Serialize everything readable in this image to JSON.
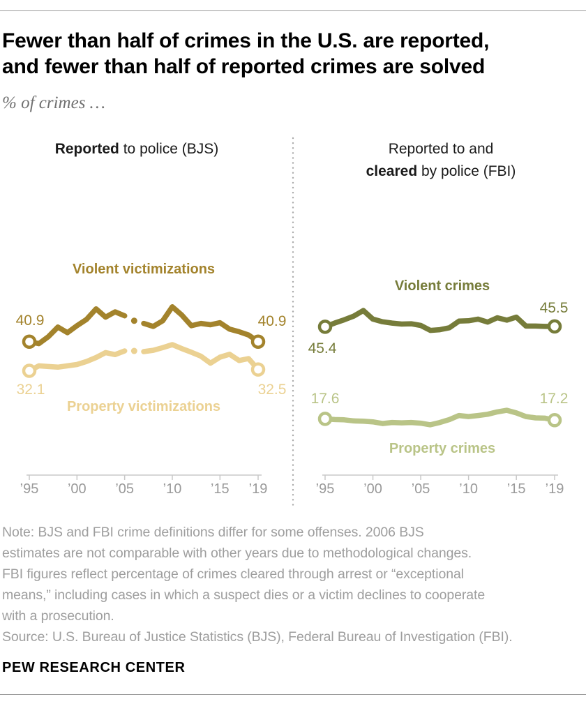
{
  "title": {
    "line1": "Fewer than half of crimes in the U.S. are reported,",
    "line2": "and fewer than half of reported crimes are solved"
  },
  "subtitle": "% of crimes …",
  "chart_data": {
    "type": "line",
    "x": [
      1995,
      1996,
      1997,
      1998,
      1999,
      2000,
      2001,
      2002,
      2003,
      2004,
      2005,
      2006,
      2007,
      2008,
      2009,
      2010,
      2011,
      2012,
      2013,
      2014,
      2015,
      2016,
      2017,
      2018,
      2019
    ],
    "x_tick_labels": [
      "’95",
      "’00",
      "’05",
      "’10",
      "’15",
      "’19"
    ],
    "x_tick_years": [
      1995,
      2000,
      2005,
      2010,
      2015,
      2019
    ],
    "axis": {
      "line_color": "#c8c8c8",
      "tick_label_color": "#9a9a9a"
    },
    "divider_color": "#ababab",
    "panels": [
      {
        "id": "bjs",
        "header_lines": [
          [
            {
              "text": "Reported",
              "bold": true
            },
            {
              "text": " to police (BJS)",
              "bold": false
            }
          ]
        ],
        "series": [
          {
            "name": "Violent victimizations",
            "color": "#a3832c",
            "gap_year": 2006,
            "first_label": "40.9",
            "last_label": "40.9",
            "values": [
              40.9,
              40.3,
              42.4,
              45.3,
              43.6,
              45.7,
              47.6,
              50.8,
              48.3,
              49.9,
              48.7,
              47.2,
              46.4,
              45.5,
              47.2,
              51.4,
              48.9,
              45.7,
              46.4,
              46.0,
              46.6,
              44.7,
              43.9,
              42.9,
              40.9
            ]
          },
          {
            "name": "Property victimizations",
            "color": "#ebd192",
            "gap_year": 2006,
            "first_label": "32.1",
            "last_label": "32.5",
            "values": [
              32.1,
              33.6,
              33.4,
              33.2,
              33.6,
              34.0,
              34.9,
              36.1,
              37.6,
              37.0,
              38.1,
              38.1,
              37.9,
              38.3,
              39.1,
              40.0,
              38.8,
              37.7,
              36.5,
              34.4,
              36.2,
              37.1,
              35.2,
              35.8,
              32.5
            ]
          }
        ]
      },
      {
        "id": "fbi",
        "header_lines": [
          [
            {
              "text": "Reported to and",
              "bold": false
            }
          ],
          [
            {
              "text": "cleared",
              "bold": true
            },
            {
              "text": " by police (FBI)",
              "bold": false
            }
          ]
        ],
        "series": [
          {
            "name": "Violent crimes",
            "color": "#767c3a",
            "first_label": "45.4",
            "last_label": "45.5",
            "values": [
              45.4,
              46.5,
              47.5,
              48.6,
              50.3,
              47.7,
              46.9,
              46.5,
              46.2,
              46.3,
              45.8,
              44.3,
              44.5,
              45.1,
              47.1,
              47.2,
              47.7,
              46.8,
              48.1,
              47.4,
              48.3,
              45.6,
              45.6,
              45.5,
              45.5
            ]
          },
          {
            "name": "Property crimes",
            "color": "#b9c487",
            "first_label": "17.6",
            "last_label": "17.2",
            "values": [
              17.6,
              17.4,
              17.3,
              17.0,
              16.9,
              16.7,
              16.2,
              16.5,
              16.4,
              16.5,
              16.3,
              15.8,
              16.5,
              17.4,
              18.6,
              18.3,
              18.6,
              19.0,
              19.7,
              20.2,
              19.4,
              18.3,
              17.9,
              17.8,
              17.2
            ]
          }
        ]
      }
    ]
  },
  "note": {
    "lines": [
      "Note: BJS and FBI crime definitions differ for some offenses. 2006 BJS",
      "estimates are not comparable with other years due to methodological changes.",
      "FBI figures reflect percentage of crimes cleared through arrest or “exceptional",
      "means,” including cases in which a suspect dies or a victim declines to cooperate",
      "with a prosecution."
    ],
    "source": "Source: U.S. Bureau of Justice Statistics (BJS), Federal Bureau of Investigation (FBI)."
  },
  "footer": {
    "brand": "PEW RESEARCH CENTER"
  }
}
